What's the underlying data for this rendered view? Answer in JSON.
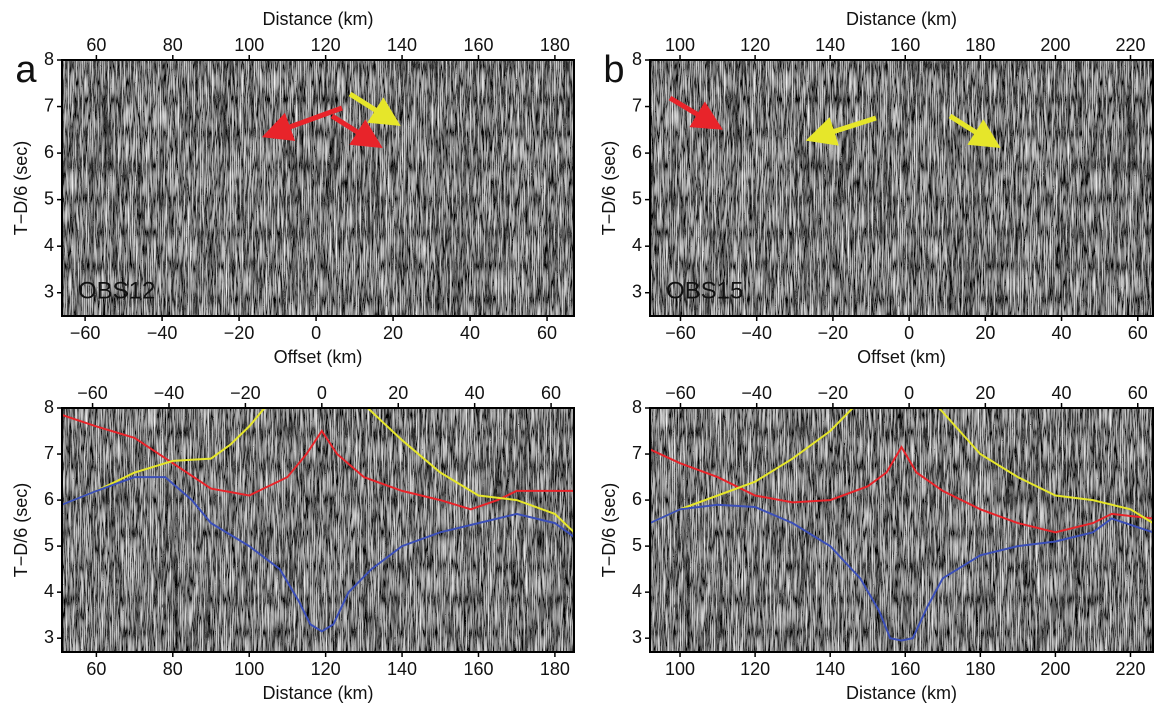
{
  "chart_data": [
    {
      "type": "seismic",
      "panel_label": "a",
      "station": "OBS12",
      "ylabel": "T−D/6 (sec)",
      "xlabel": "Offset (km)",
      "xlim": [
        -66,
        67
      ],
      "xticks": [
        {
          "value": -60,
          "label": "−60"
        },
        {
          "value": -40,
          "label": "−40"
        },
        {
          "value": -20,
          "label": "−20"
        },
        0,
        20,
        40,
        60
      ],
      "x2label": "Distance (km)",
      "x2lim": [
        51,
        185
      ],
      "x2ticks": [
        60,
        80,
        100,
        120,
        140,
        160,
        180
      ],
      "ylim": [
        2.5,
        8
      ],
      "yticks": [
        3,
        4,
        5,
        6,
        7,
        8
      ]
    },
    {
      "type": "seismic",
      "panel_label": "b",
      "station": "OBS15",
      "ylabel": "T−D/6 (sec)",
      "xlabel": "Offset (km)",
      "xlim": [
        -68,
        64
      ],
      "xticks": [
        {
          "value": -60,
          "label": "−60"
        },
        {
          "value": -40,
          "label": "−40"
        },
        {
          "value": -20,
          "label": "−20"
        },
        0,
        20,
        40,
        60
      ],
      "x2label": "Distance (km)",
      "x2lim": [
        92,
        226
      ],
      "x2ticks": [
        100,
        120,
        140,
        160,
        180,
        200,
        220
      ],
      "ylim": [
        2.5,
        8
      ],
      "yticks": [
        3,
        4,
        5,
        6,
        7,
        8
      ]
    },
    {
      "type": "line",
      "ylabel": "T−D/6 (sec)",
      "xlabel": "Distance (km)",
      "xlim": [
        51,
        185
      ],
      "xticks": [
        60,
        80,
        100,
        120,
        140,
        160,
        180
      ],
      "x2lim": [
        -68,
        66
      ],
      "x2ticks": [
        {
          "value": -60,
          "label": "−60"
        },
        {
          "value": -40,
          "label": "−40"
        },
        {
          "value": -20,
          "label": "−20"
        },
        0,
        20,
        40,
        60
      ],
      "ylim": [
        2.7,
        8
      ],
      "yticks": [
        3,
        4,
        5,
        6,
        7,
        8
      ],
      "series": [
        {
          "color": "#e8242a",
          "x": [
            51,
            60,
            70,
            80,
            90,
            100,
            110,
            115,
            119,
            123,
            130,
            140,
            150,
            158,
            165,
            170,
            185
          ],
          "values": [
            7.85,
            7.6,
            7.35,
            6.8,
            6.25,
            6.1,
            6.5,
            7.0,
            7.5,
            7.0,
            6.5,
            6.2,
            6.0,
            5.8,
            6.0,
            6.2,
            6.2
          ]
        },
        {
          "color": "#e6e62a",
          "x": [
            51,
            60,
            70,
            80,
            90,
            95,
            100,
            104,
            null,
            131,
            140,
            150,
            160,
            170,
            180,
            185
          ],
          "values": [
            5.9,
            6.2,
            6.6,
            6.85,
            6.9,
            7.2,
            7.6,
            8.0,
            null,
            8.0,
            7.3,
            6.6,
            6.1,
            6.0,
            5.7,
            5.3
          ]
        },
        {
          "color": "#3b4fb8",
          "x": [
            51,
            60,
            70,
            78,
            85,
            90,
            100,
            108,
            113,
            116,
            119,
            122,
            126,
            132,
            140,
            150,
            160,
            170,
            180,
            185
          ],
          "values": [
            5.9,
            6.2,
            6.5,
            6.5,
            6.0,
            5.5,
            5.0,
            4.5,
            3.8,
            3.3,
            3.15,
            3.3,
            4.0,
            4.5,
            5.0,
            5.3,
            5.5,
            5.7,
            5.5,
            5.2
          ]
        }
      ]
    },
    {
      "type": "line",
      "ylabel": "T−D/6 (sec)",
      "xlabel": "Distance (km)",
      "xlim": [
        92,
        226
      ],
      "xticks": [
        100,
        120,
        140,
        160,
        180,
        200,
        220
      ],
      "x2lim": [
        -68,
        64
      ],
      "x2ticks": [
        {
          "value": -60,
          "label": "−60"
        },
        {
          "value": -40,
          "label": "−40"
        },
        {
          "value": -20,
          "label": "−20"
        },
        0,
        20,
        40,
        60
      ],
      "ylim": [
        2.7,
        8
      ],
      "yticks": [
        3,
        4,
        5,
        6,
        7,
        8
      ],
      "series": [
        {
          "color": "#e8242a",
          "x": [
            92,
            100,
            110,
            120,
            130,
            140,
            150,
            155,
            159,
            163,
            170,
            180,
            190,
            200,
            210,
            215,
            226
          ],
          "values": [
            7.1,
            6.8,
            6.5,
            6.1,
            5.95,
            6.0,
            6.3,
            6.6,
            7.15,
            6.6,
            6.2,
            5.8,
            5.5,
            5.3,
            5.5,
            5.7,
            5.6
          ]
        },
        {
          "color": "#e6e62a",
          "x": [
            92,
            100,
            110,
            120,
            130,
            140,
            146,
            null,
            169,
            180,
            190,
            200,
            210,
            220,
            226
          ],
          "values": [
            5.5,
            5.8,
            6.1,
            6.4,
            6.9,
            7.5,
            8.0,
            null,
            8.0,
            7.0,
            6.5,
            6.1,
            6.0,
            5.8,
            5.5
          ]
        },
        {
          "color": "#3b4fb8",
          "x": [
            92,
            100,
            110,
            120,
            130,
            140,
            148,
            153,
            156,
            159,
            162,
            166,
            170,
            180,
            190,
            200,
            210,
            215,
            226
          ],
          "values": [
            5.5,
            5.8,
            5.9,
            5.85,
            5.5,
            5.0,
            4.3,
            3.6,
            3.0,
            2.95,
            3.0,
            3.7,
            4.3,
            4.8,
            5.0,
            5.1,
            5.3,
            5.6,
            5.3
          ]
        }
      ]
    }
  ]
}
